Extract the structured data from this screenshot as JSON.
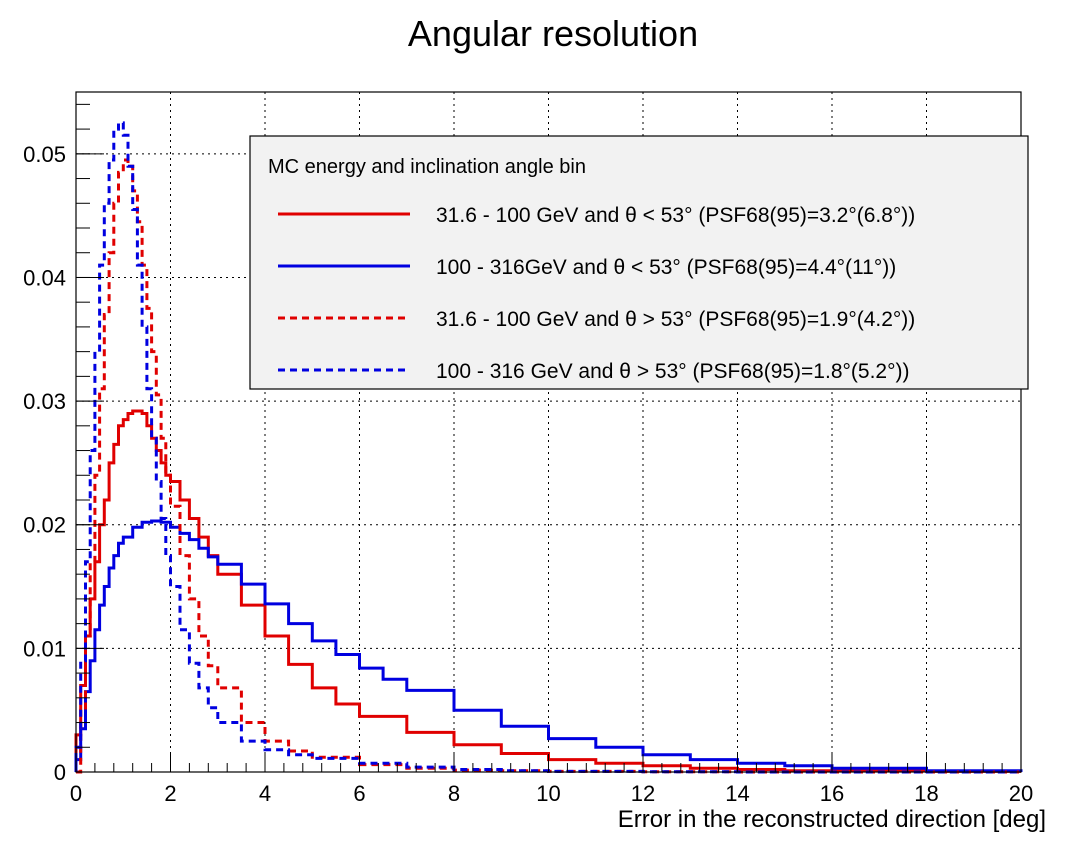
{
  "chart_data": {
    "type": "line",
    "title": "Angular resolution",
    "xlabel": "Error in the reconstructed direction [deg]",
    "ylabel": "",
    "xlim": [
      0,
      20
    ],
    "ylim": [
      0,
      0.055
    ],
    "grid": true,
    "x_ticks": [
      0,
      2,
      4,
      6,
      8,
      10,
      12,
      14,
      16,
      18,
      20
    ],
    "x_tick_labels": [
      "0",
      "2",
      "4",
      "6",
      "8",
      "10",
      "12",
      "14",
      "16",
      "18",
      "20"
    ],
    "y_ticks": [
      0,
      0.01,
      0.02,
      0.03,
      0.04,
      0.05
    ],
    "y_tick_labels": [
      "0",
      "0.01",
      "0.02",
      "0.03",
      "0.04",
      "0.05"
    ],
    "legend": {
      "title": "MC energy and inclination angle bin",
      "placement": "top-right"
    },
    "series": [
      {
        "name": "31.6 - 100 GeV and θ < 53°  (PSF68(95)=3.2°(6.8°))",
        "color": "#e00000",
        "style": "solid",
        "x": [
          0.0,
          0.1,
          0.2,
          0.3,
          0.4,
          0.5,
          0.6,
          0.7,
          0.8,
          0.9,
          1.0,
          1.1,
          1.2,
          1.3,
          1.4,
          1.5,
          1.6,
          1.7,
          1.8,
          1.9,
          2.0,
          2.2,
          2.4,
          2.6,
          2.8,
          3.0,
          3.5,
          4.0,
          4.5,
          5.0,
          5.5,
          6.0,
          7.0,
          8.0,
          9.0,
          10.0,
          11.0,
          12.0,
          13.0,
          14.0,
          15.0,
          16.0,
          18.0,
          20.0
        ],
        "y": [
          0.003,
          0.007,
          0.011,
          0.014,
          0.017,
          0.02,
          0.022,
          0.025,
          0.0265,
          0.028,
          0.0285,
          0.029,
          0.0292,
          0.0292,
          0.029,
          0.028,
          0.027,
          0.026,
          0.025,
          0.024,
          0.0235,
          0.022,
          0.0205,
          0.019,
          0.0175,
          0.016,
          0.0135,
          0.011,
          0.0087,
          0.0068,
          0.0055,
          0.0045,
          0.0032,
          0.0022,
          0.0015,
          0.001,
          0.0007,
          0.0005,
          0.0003,
          0.0002,
          0.0001,
          0.0001,
          5e-05,
          0.0
        ]
      },
      {
        "name": "100 - 316GeV and θ < 53°  (PSF68(95)=4.4°(11°))",
        "color": "#0000e0",
        "style": "solid",
        "x": [
          0.0,
          0.1,
          0.2,
          0.3,
          0.4,
          0.5,
          0.6,
          0.7,
          0.8,
          0.9,
          1.0,
          1.2,
          1.4,
          1.6,
          1.8,
          2.0,
          2.2,
          2.4,
          2.6,
          2.8,
          3.0,
          3.5,
          4.0,
          4.5,
          5.0,
          5.5,
          6.0,
          6.5,
          7.0,
          8.0,
          9.0,
          10.0,
          11.0,
          12.0,
          13.0,
          14.0,
          15.0,
          16.0,
          18.0,
          20.0
        ],
        "y": [
          0.001,
          0.0035,
          0.0065,
          0.009,
          0.0115,
          0.0135,
          0.015,
          0.0165,
          0.0175,
          0.0185,
          0.019,
          0.0198,
          0.0202,
          0.0203,
          0.0202,
          0.0198,
          0.0193,
          0.0188,
          0.0181,
          0.0174,
          0.0168,
          0.0152,
          0.0136,
          0.012,
          0.0106,
          0.0095,
          0.0084,
          0.0075,
          0.0066,
          0.005,
          0.0037,
          0.0027,
          0.002,
          0.0014,
          0.001,
          0.0007,
          0.0005,
          0.0003,
          0.0001,
          0.0
        ]
      },
      {
        "name": "31.6 - 100 GeV and θ > 53°  (PSF68(95)=1.9°(4.2°))",
        "color": "#e00000",
        "style": "dashed",
        "x": [
          0.0,
          0.1,
          0.2,
          0.3,
          0.4,
          0.5,
          0.6,
          0.7,
          0.8,
          0.9,
          1.0,
          1.1,
          1.2,
          1.3,
          1.4,
          1.5,
          1.6,
          1.7,
          1.8,
          1.9,
          2.0,
          2.2,
          2.4,
          2.6,
          2.8,
          3.0,
          3.5,
          4.0,
          4.5,
          5.0,
          6.0,
          7.0,
          8.0,
          9.0,
          10.0,
          12.0,
          14.0,
          20.0
        ],
        "y": [
          0.0,
          0.005,
          0.011,
          0.017,
          0.024,
          0.031,
          0.037,
          0.042,
          0.046,
          0.0485,
          0.0495,
          0.049,
          0.047,
          0.0445,
          0.041,
          0.0375,
          0.034,
          0.0305,
          0.027,
          0.024,
          0.0215,
          0.0175,
          0.014,
          0.011,
          0.0086,
          0.0068,
          0.004,
          0.0025,
          0.0017,
          0.0012,
          0.0006,
          0.0003,
          0.00015,
          0.0001,
          5e-05,
          2e-05,
          0.0,
          0.0
        ]
      },
      {
        "name": "100 - 316 GeV and θ > 53°  (PSF68(95)=1.8°(5.2°))",
        "color": "#0000e0",
        "style": "dashed",
        "x": [
          0.0,
          0.1,
          0.2,
          0.3,
          0.4,
          0.5,
          0.6,
          0.7,
          0.8,
          0.9,
          1.0,
          1.1,
          1.2,
          1.3,
          1.4,
          1.5,
          1.6,
          1.7,
          1.8,
          1.9,
          2.0,
          2.2,
          2.4,
          2.6,
          2.8,
          3.0,
          3.5,
          4.0,
          4.5,
          5.0,
          6.0,
          7.0,
          8.0,
          9.0,
          10.0,
          12.0,
          14.0,
          20.0
        ],
        "y": [
          0.002,
          0.009,
          0.017,
          0.026,
          0.034,
          0.041,
          0.046,
          0.0495,
          0.052,
          0.0525,
          0.0515,
          0.049,
          0.0455,
          0.041,
          0.036,
          0.031,
          0.027,
          0.0235,
          0.0205,
          0.0175,
          0.015,
          0.0115,
          0.0088,
          0.0068,
          0.0052,
          0.004,
          0.0025,
          0.0018,
          0.0014,
          0.0011,
          0.0007,
          0.0004,
          0.0002,
          0.0001,
          5e-05,
          2e-05,
          0.0,
          0.0
        ]
      }
    ]
  }
}
